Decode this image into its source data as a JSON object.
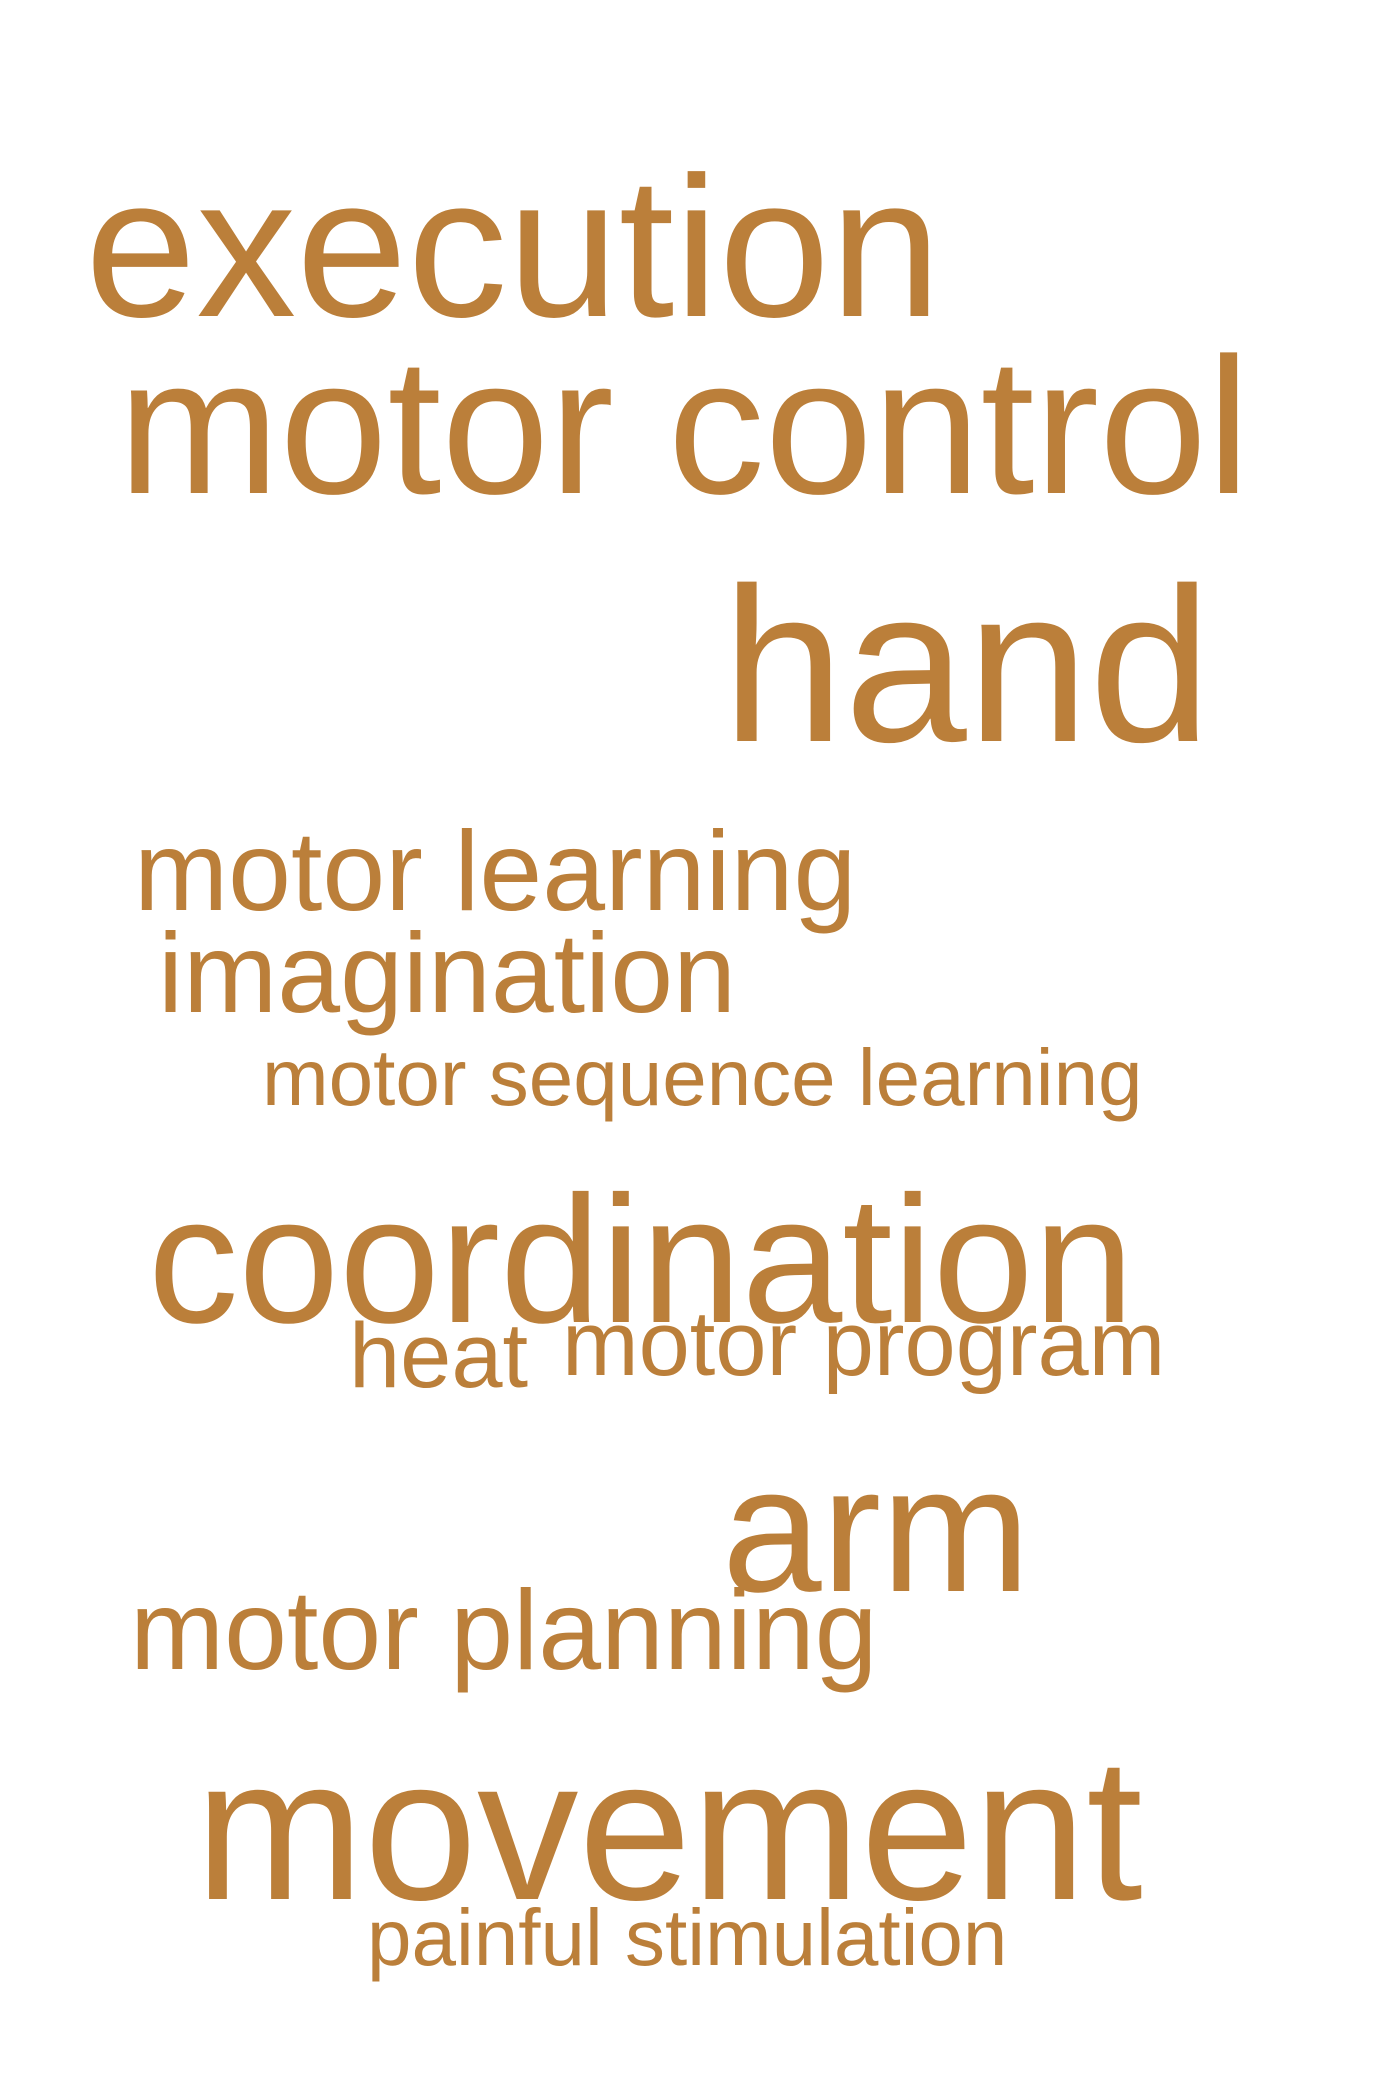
{
  "color": "#bb7f3a",
  "words": {
    "execution": "execution",
    "motor_control": "motor control",
    "hand": "hand",
    "motor_learning": "motor learning",
    "imagination": "imagination",
    "motor_sequence_learning": "motor sequence learning",
    "coordination": "coordination",
    "heat": "heat",
    "motor_program": "motor program",
    "arm": "arm",
    "motor_planning": "motor planning",
    "movement": "movement",
    "painful_stimulation": "painful stimulation"
  }
}
